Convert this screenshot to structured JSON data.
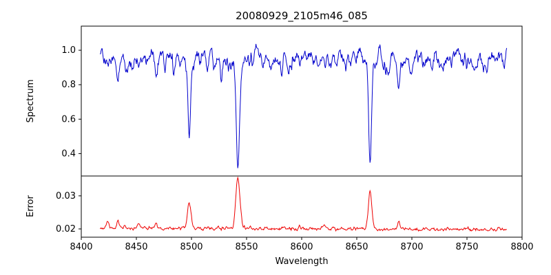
{
  "figure": {
    "title": "20080929_2105m46_085",
    "xlabel": "Wavelength",
    "background": "#ffffff",
    "axis_color": "#000000"
  },
  "chart_data": [
    {
      "type": "line",
      "panel": "spectrum",
      "ylabel": "Spectrum",
      "color": "#0000cc",
      "legend": "none",
      "grid": false,
      "xlim": [
        8400,
        8800
      ],
      "ylim": [
        0.27,
        1.14
      ],
      "x_ticks": [
        8400,
        8450,
        8500,
        8550,
        8600,
        8650,
        8700,
        8750,
        8800
      ],
      "y_ticks": [
        0.4,
        0.6,
        0.8,
        1.0
      ],
      "x_data_range": [
        8417,
        8786
      ],
      "sample_step": 0.5,
      "continuum": 0.97,
      "absorption_lines": [
        [
          8498.0,
          0.43,
          1.1
        ],
        [
          8498.0,
          0.05,
          3.5
        ],
        [
          8542.1,
          0.62,
          1.4
        ],
        [
          8542.1,
          0.06,
          4.5
        ],
        [
          8662.1,
          0.58,
          1.2
        ],
        [
          8662.1,
          0.06,
          4.0
        ],
        [
          8424,
          0.06,
          0.8
        ],
        [
          8433,
          0.13,
          0.9
        ],
        [
          8440,
          0.06,
          0.8
        ],
        [
          8446,
          0.05,
          0.7
        ],
        [
          8452,
          0.07,
          0.8
        ],
        [
          8459,
          0.05,
          0.7
        ],
        [
          8468,
          0.11,
          0.9
        ],
        [
          8476,
          0.06,
          0.8
        ],
        [
          8484,
          0.05,
          0.7
        ],
        [
          8514,
          0.07,
          0.8
        ],
        [
          8520,
          0.05,
          0.7
        ],
        [
          8527,
          0.06,
          0.8
        ],
        [
          8556,
          0.06,
          0.8
        ],
        [
          8564,
          0.05,
          0.7
        ],
        [
          8572,
          0.05,
          0.7
        ],
        [
          8582,
          0.07,
          0.8
        ],
        [
          8590,
          0.05,
          0.7
        ],
        [
          8598,
          0.08,
          0.9
        ],
        [
          8611,
          0.06,
          0.8
        ],
        [
          8621,
          0.08,
          0.9
        ],
        [
          8632,
          0.05,
          0.7
        ],
        [
          8640,
          0.06,
          0.8
        ],
        [
          8674,
          0.06,
          0.8
        ],
        [
          8679,
          0.05,
          0.7
        ],
        [
          8688,
          0.17,
          1.0
        ],
        [
          8699,
          0.06,
          0.8
        ],
        [
          8710,
          0.05,
          0.7
        ],
        [
          8718,
          0.06,
          0.8
        ],
        [
          8728,
          0.05,
          0.7
        ],
        [
          8736,
          0.06,
          0.8
        ],
        [
          8747,
          0.05,
          0.7
        ],
        [
          8757,
          0.06,
          0.8
        ],
        [
          8768,
          0.05,
          0.7
        ],
        [
          8776,
          0.05,
          0.7
        ]
      ],
      "noise": {
        "seed1": 20080929,
        "seed2": 2105,
        "amp_up": 0.12,
        "amp_down": 0.1
      }
    },
    {
      "type": "line",
      "panel": "error",
      "ylabel": "Error",
      "xlabel": "Wavelength",
      "color": "#ee0000",
      "legend": "none",
      "grid": false,
      "xlim": [
        8400,
        8800
      ],
      "ylim": [
        0.0175,
        0.036
      ],
      "x_ticks": [
        8400,
        8450,
        8500,
        8550,
        8600,
        8650,
        8700,
        8750,
        8800
      ],
      "y_ticks": [
        0.02,
        0.03
      ],
      "baseline": 0.0198,
      "trend_per_angstrom": -1.2e-06,
      "error_peaks": [
        [
          8498.0,
          0.008,
          1.6
        ],
        [
          8542.1,
          0.015,
          1.9
        ],
        [
          8662.1,
          0.0112,
          1.6
        ],
        [
          8688,
          0.0022,
          1.2
        ],
        [
          8424,
          0.002,
          1.0
        ],
        [
          8433,
          0.0018,
          1.0
        ],
        [
          8452,
          0.0012,
          1.0
        ],
        [
          8468,
          0.0014,
          1.0
        ],
        [
          8598,
          0.0008,
          1.0
        ],
        [
          8621,
          0.0008,
          1.0
        ]
      ],
      "noise": {
        "seed1": 85,
        "seed2": 46,
        "amp_abs": 0.0012,
        "amp": 0.0006
      }
    }
  ]
}
